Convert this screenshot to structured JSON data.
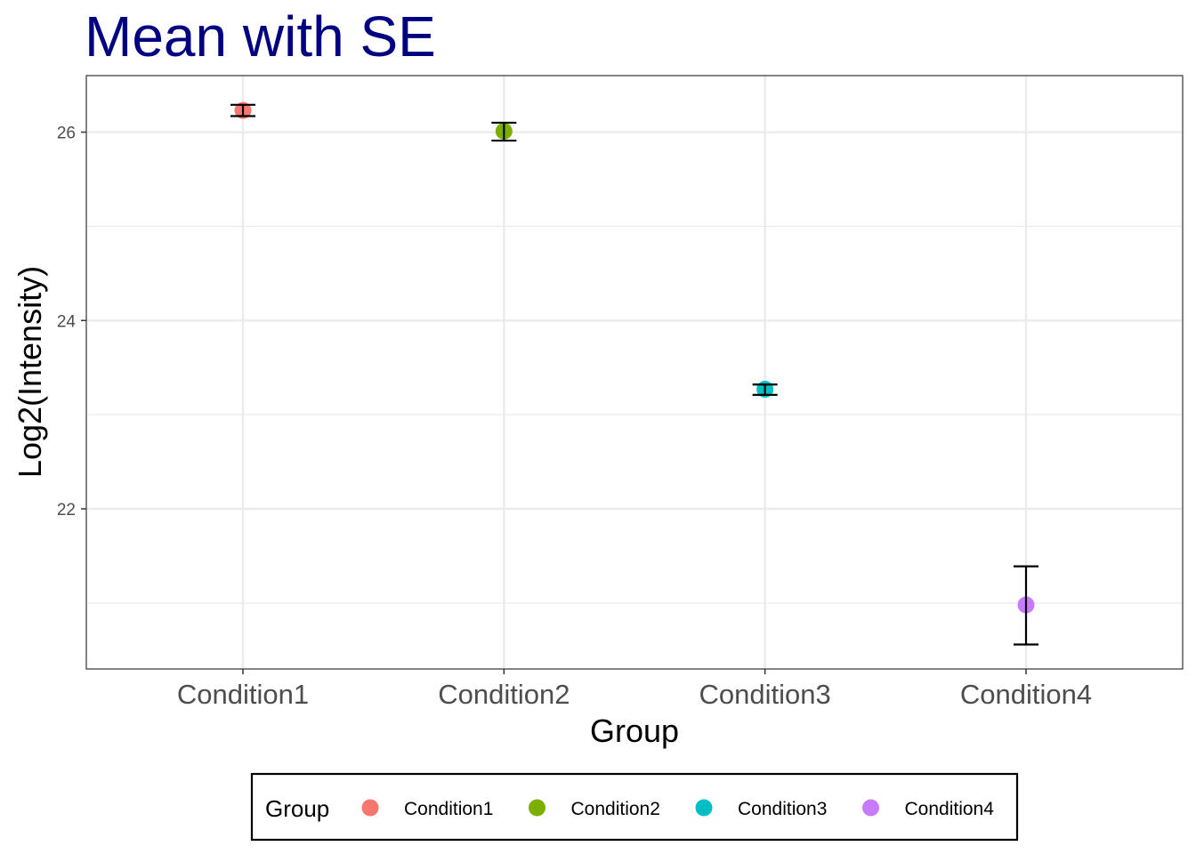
{
  "chart_data": {
    "type": "scatter",
    "title": "Mean with SE",
    "xlabel": "Group",
    "ylabel": "Log2(Intensity)",
    "categories": [
      "Condition1",
      "Condition2",
      "Condition3",
      "Condition4"
    ],
    "ylim": [
      20.3,
      26.6
    ],
    "yticks": [
      22,
      24,
      26
    ],
    "yticks_minor": [
      21,
      23,
      25
    ],
    "grid": true,
    "points": [
      {
        "x": "Condition1",
        "mean": 26.23,
        "se_low": 26.17,
        "se_high": 26.29,
        "color": "#F8766D"
      },
      {
        "x": "Condition2",
        "mean": 26.01,
        "se_low": 25.91,
        "se_high": 26.1,
        "color": "#7CAE00"
      },
      {
        "x": "Condition3",
        "mean": 23.27,
        "se_low": 23.21,
        "se_high": 23.32,
        "color": "#00BFC4"
      },
      {
        "x": "Condition4",
        "mean": 20.98,
        "se_low": 20.56,
        "se_high": 21.39,
        "color": "#C77CFF"
      }
    ],
    "legend": {
      "position": "bottom",
      "title": "Group",
      "items": [
        "Condition1",
        "Condition2",
        "Condition3",
        "Condition4"
      ]
    }
  },
  "colors": {
    "title": "#000080",
    "grid": "#EBEBEB",
    "panel_border": "#333333",
    "errorbar": "#000000",
    "ytick_text": "#4D4D4D",
    "xtick_text": "#4D4D4D"
  }
}
